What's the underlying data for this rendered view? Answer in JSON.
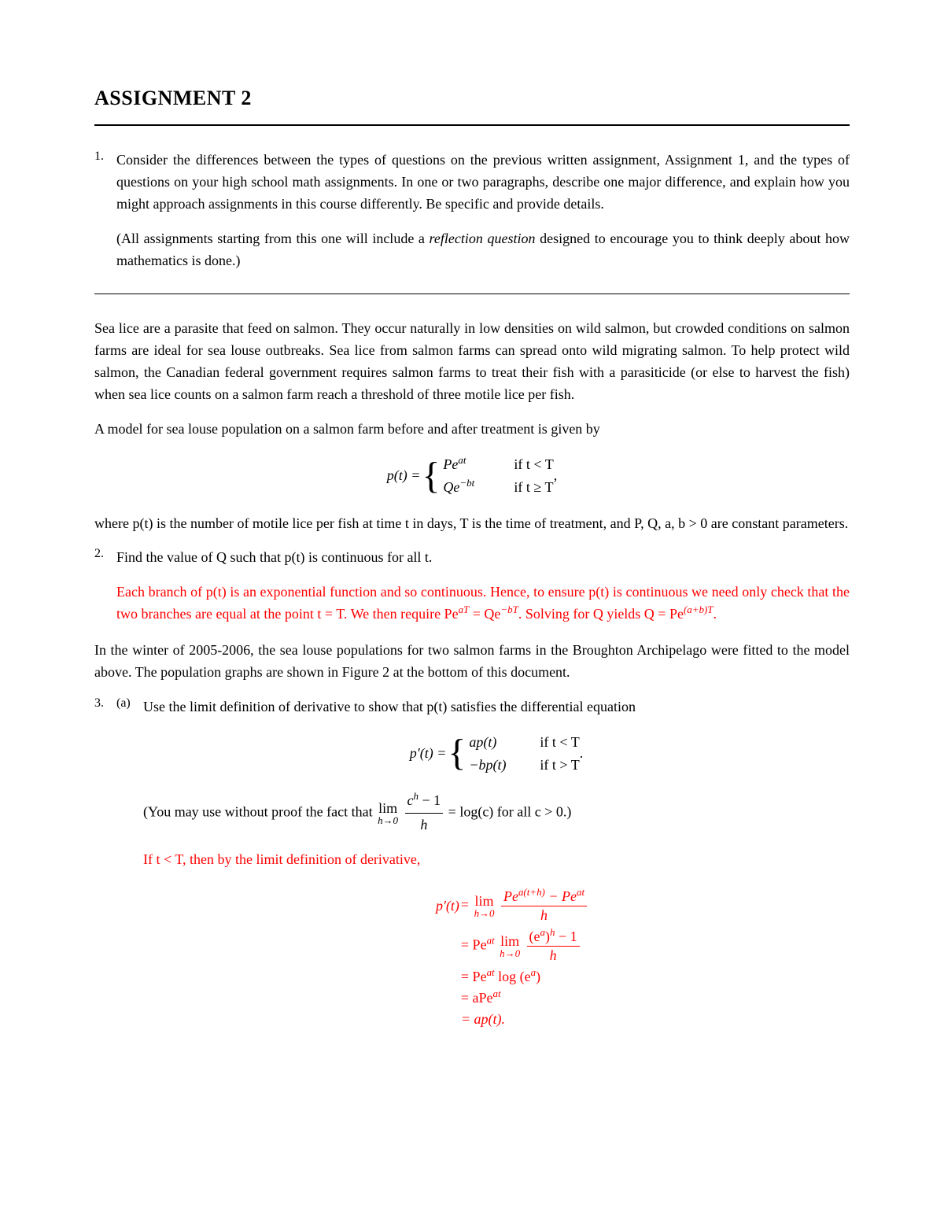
{
  "title": "ASSIGNMENT 2",
  "colors": {
    "text": "#000000",
    "solution": "#ff0000",
    "background": "#ffffff"
  },
  "fontsize": {
    "body": 18,
    "title": 26
  },
  "q1": {
    "num": "1.",
    "para1": "Consider the differences between the types of questions on the previous written assignment, Assignment 1, and the types of questions on your high school math assignments. In one or two paragraphs, describe one major difference, and explain how you might approach assignments in this course differently. Be specific and provide details.",
    "para2_a": "(All assignments starting from this one will include a ",
    "para2_it": "reflection question",
    "para2_b": " designed to encourage you to think deeply about how mathematics is done.)"
  },
  "intro": {
    "para1": "Sea lice are a parasite that feed on salmon. They occur naturally in low densities on wild salmon, but crowded conditions on salmon farms are ideal for sea louse outbreaks. Sea lice from salmon farms can spread onto wild migrating salmon. To help protect wild salmon, the Canadian federal government requires salmon farms to treat their fish with a parasiticide (or else to harvest the fish) when sea lice counts on a salmon farm reach a threshold of three motile lice per fish.",
    "para2": "A model for sea louse population on a salmon farm before and after treatment is given by"
  },
  "model": {
    "lhs": "p(t) = ",
    "case1_expr": "Pe",
    "case1_sup": "at",
    "case1_cond": "if t < T",
    "case2_expr": "Qe",
    "case2_sup": "−bt",
    "case2_cond": "if t ≥ T",
    "trailing": " ,"
  },
  "model_after": "where p(t) is the number of motile lice per fish at time t in days, T is the time of treatment, and P, Q, a, b > 0 are constant parameters.",
  "q2": {
    "num": "2.",
    "prompt": "Find the value of Q such that p(t) is continuous for all t.",
    "sol_a": "Each branch of p(t) is an exponential function and so continuous. Hence, to ensure p(t) is continuous we need only check that the two branches are equal at the point t = T. We then require Pe",
    "sol_sup1": "aT",
    "sol_mid": " = Qe",
    "sol_sup2": "−bT",
    "sol_end1": ". Solving for Q yields Q = Pe",
    "sol_sup3": "(a+b)T",
    "sol_end2": "."
  },
  "between": "In the winter of 2005-2006, the sea louse populations for two salmon farms in the Broughton Archipelago were fitted to the model above. The population graphs are shown in Figure 2 at the bottom of this document.",
  "q3": {
    "num": "3.",
    "a_marker": "(a)",
    "a_prompt": "Use the limit definition of derivative to show that p(t) satisfies the differential equation"
  },
  "deriv": {
    "lhs": "p′(t) = ",
    "case1_l": "ap(t)",
    "case1_cond": "if t < T",
    "case2_l": "−bp(t)",
    "case2_cond": "if t > T",
    "trailing": " ."
  },
  "hint": {
    "a": "(You may use without proof the fact that ",
    "lim": "lim",
    "limsub": "h→0",
    "num": "c",
    "num_sup": "h",
    "num_tail": " − 1",
    "den": "h",
    "eq": " = log(c) for all c > 0.)"
  },
  "sol3_intro": "If t < T, then by the limit definition of derivative,",
  "derivation": {
    "lhs": "p′(t) ",
    "r1a": "= ",
    "r1_lim": "lim",
    "r1_limsub": "h→0",
    "r1_num_a": "Pe",
    "r1_num_sup1": "a(t+h)",
    "r1_num_mid": " − Pe",
    "r1_num_sup2": "at",
    "r1_den": "h",
    "r2a": "= Pe",
    "r2_sup": "at",
    "r2_mid": " ",
    "r2_lim": "lim",
    "r2_limsub": "h→0",
    "r2_num_a": "(e",
    "r2_num_sup1": "a",
    "r2_num_b": ")",
    "r2_num_sup2": "h",
    "r2_num_tail": " − 1",
    "r2_den": "h",
    "r3": "= Pe",
    "r3_sup": "at",
    "r3_tail": " log (e",
    "r3_sup2": "a",
    "r3_close": ")",
    "r4": "= aPe",
    "r4_sup": "at",
    "r5": "= ap(t)."
  }
}
